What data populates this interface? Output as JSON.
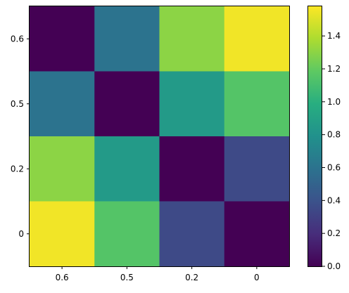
{
  "chart_data": {
    "type": "heatmap",
    "title": "",
    "xlabel": "",
    "ylabel": "",
    "x_categories": [
      "0.6",
      "0.5",
      "0.2",
      "0"
    ],
    "y_categories": [
      "0.6",
      "0.5",
      "0.2",
      "0"
    ],
    "values": [
      [
        0.0,
        0.6,
        1.3,
        1.55
      ],
      [
        0.6,
        0.0,
        0.85,
        1.15
      ],
      [
        1.3,
        0.85,
        0.0,
        0.35
      ],
      [
        1.55,
        1.15,
        0.35,
        0.0
      ]
    ],
    "colorbar": {
      "min": 0.0,
      "max": 1.58,
      "ticks": [
        "0.0",
        "0.2",
        "0.4",
        "0.6",
        "0.8",
        "1.0",
        "1.2",
        "1.4"
      ],
      "tick_values": [
        0.0,
        0.2,
        0.4,
        0.6,
        0.8,
        1.0,
        1.2,
        1.4
      ],
      "colormap": "viridis"
    },
    "grid": false
  }
}
